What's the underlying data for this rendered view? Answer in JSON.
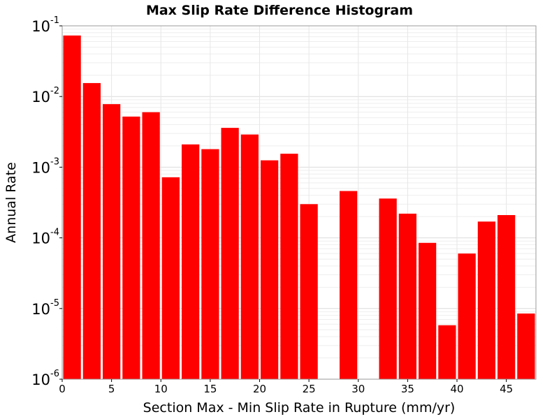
{
  "chart_data": {
    "type": "bar",
    "title": "Max Slip Rate Difference Histogram",
    "xlabel": "Section Max - Min Slip Rate in Rupture (mm/yr)",
    "ylabel": "Annual Rate",
    "y_scale": "log",
    "ylim": [
      1e-06,
      0.1
    ],
    "xlim": [
      0,
      48
    ],
    "bin_width": 2,
    "x_ticks": [
      "0",
      "5",
      "10",
      "15",
      "20",
      "25",
      "30",
      "35",
      "40",
      "45"
    ],
    "y_ticks": [
      {
        "base": "10",
        "exp": "-1"
      },
      {
        "base": "10",
        "exp": "-2"
      },
      {
        "base": "10",
        "exp": "-3"
      },
      {
        "base": "10",
        "exp": "-4"
      },
      {
        "base": "10",
        "exp": "-5"
      },
      {
        "base": "10",
        "exp": "-6"
      }
    ],
    "bars": [
      {
        "x": 1,
        "value": 0.073
      },
      {
        "x": 3,
        "value": 0.0155
      },
      {
        "x": 5,
        "value": 0.0078
      },
      {
        "x": 7,
        "value": 0.0052
      },
      {
        "x": 9,
        "value": 0.006
      },
      {
        "x": 11,
        "value": 0.00072
      },
      {
        "x": 13,
        "value": 0.0021
      },
      {
        "x": 15,
        "value": 0.0018
      },
      {
        "x": 17,
        "value": 0.0036
      },
      {
        "x": 19,
        "value": 0.0029
      },
      {
        "x": 21,
        "value": 0.00125
      },
      {
        "x": 23,
        "value": 0.00155
      },
      {
        "x": 25,
        "value": 0.0003
      },
      {
        "x": 29,
        "value": 0.00046
      },
      {
        "x": 33,
        "value": 0.00036
      },
      {
        "x": 35,
        "value": 0.00022
      },
      {
        "x": 37,
        "value": 8.5e-05
      },
      {
        "x": 39,
        "value": 5.8e-06
      },
      {
        "x": 41,
        "value": 6e-05
      },
      {
        "x": 43,
        "value": 0.00017
      },
      {
        "x": 45,
        "value": 0.00021
      },
      {
        "x": 47,
        "value": 8.5e-06
      }
    ],
    "bar_color": "#ff0000",
    "grid": true,
    "legend": "none"
  }
}
